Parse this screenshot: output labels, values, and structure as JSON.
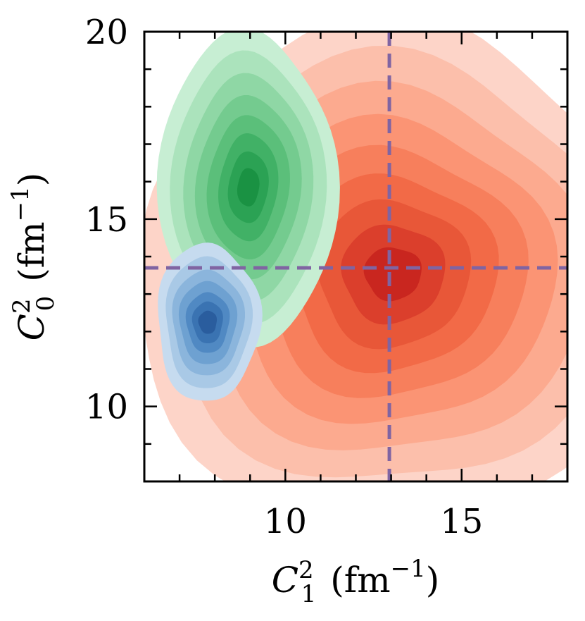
{
  "chart_data": {
    "type": "contour",
    "title": "",
    "xlabel": {
      "symbol": "C",
      "sub": "1",
      "sup": "2",
      "unit_base": "fm",
      "unit_exp": "−1",
      "lparen": "(",
      "rparen": ")"
    },
    "ylabel": {
      "symbol": "C",
      "sub": "0",
      "sup": "2",
      "unit_base": "fm",
      "unit_exp": "−1",
      "lparen": "(",
      "rparen": ")"
    },
    "xlim": [
      6,
      18
    ],
    "ylim": [
      8,
      20
    ],
    "xticks": [
      {
        "value": 10,
        "label": "10"
      },
      {
        "value": 15,
        "label": "15"
      }
    ],
    "yticks": [
      {
        "value": 10,
        "label": "10"
      },
      {
        "value": 15,
        "label": "15"
      },
      {
        "value": 20,
        "label": "20"
      }
    ],
    "xminor": [
      7,
      8,
      9,
      11,
      12,
      13,
      14,
      16,
      17
    ],
    "yminor": [
      9,
      11,
      12,
      13,
      14,
      16,
      17,
      18,
      19
    ],
    "reference_lines": {
      "x": 12.95,
      "y": 13.7,
      "color": "#8064a2",
      "style": "dashed"
    },
    "series": [
      {
        "name": "red",
        "colors": [
          "#fdd4c8",
          "#fcbfab",
          "#fcaa8f",
          "#fb9474",
          "#f77f5c",
          "#f26a47",
          "#e85738",
          "#db3f2c",
          "#c9261f"
        ],
        "center": [
          13.05,
          13.55
        ],
        "levels_rx": [
          7.35,
          6.35,
          5.4,
          4.5,
          3.7,
          2.9,
          2.15,
          1.45,
          0.8
        ],
        "levels_ry": [
          6.6,
          5.7,
          4.85,
          4.05,
          3.3,
          2.6,
          1.95,
          1.3,
          0.7
        ]
      },
      {
        "name": "green",
        "colors": [
          "#c7eed3",
          "#abe3bc",
          "#8fd7a5",
          "#74cb8f",
          "#5bbf7a",
          "#41b166",
          "#2ba254",
          "#1a9243"
        ],
        "center": [
          8.95,
          15.85
        ],
        "levels_rx": [
          2.4,
          2.05,
          1.7,
          1.4,
          1.1,
          0.8,
          0.55,
          0.3
        ],
        "levels_ry": [
          4.3,
          3.7,
          3.1,
          2.5,
          1.95,
          1.45,
          0.95,
          0.5
        ]
      },
      {
        "name": "blue",
        "colors": [
          "#c6dbef",
          "#a9c9e6",
          "#8bb5dc",
          "#6ea1d1",
          "#5089c3",
          "#3a73b2",
          "#2a5d9e"
        ],
        "center": [
          7.8,
          12.25
        ],
        "levels_rx": [
          1.45,
          1.2,
          1.0,
          0.8,
          0.6,
          0.42,
          0.25
        ],
        "levels_ry": [
          2.1,
          1.75,
          1.4,
          1.1,
          0.8,
          0.55,
          0.3
        ]
      }
    ]
  }
}
